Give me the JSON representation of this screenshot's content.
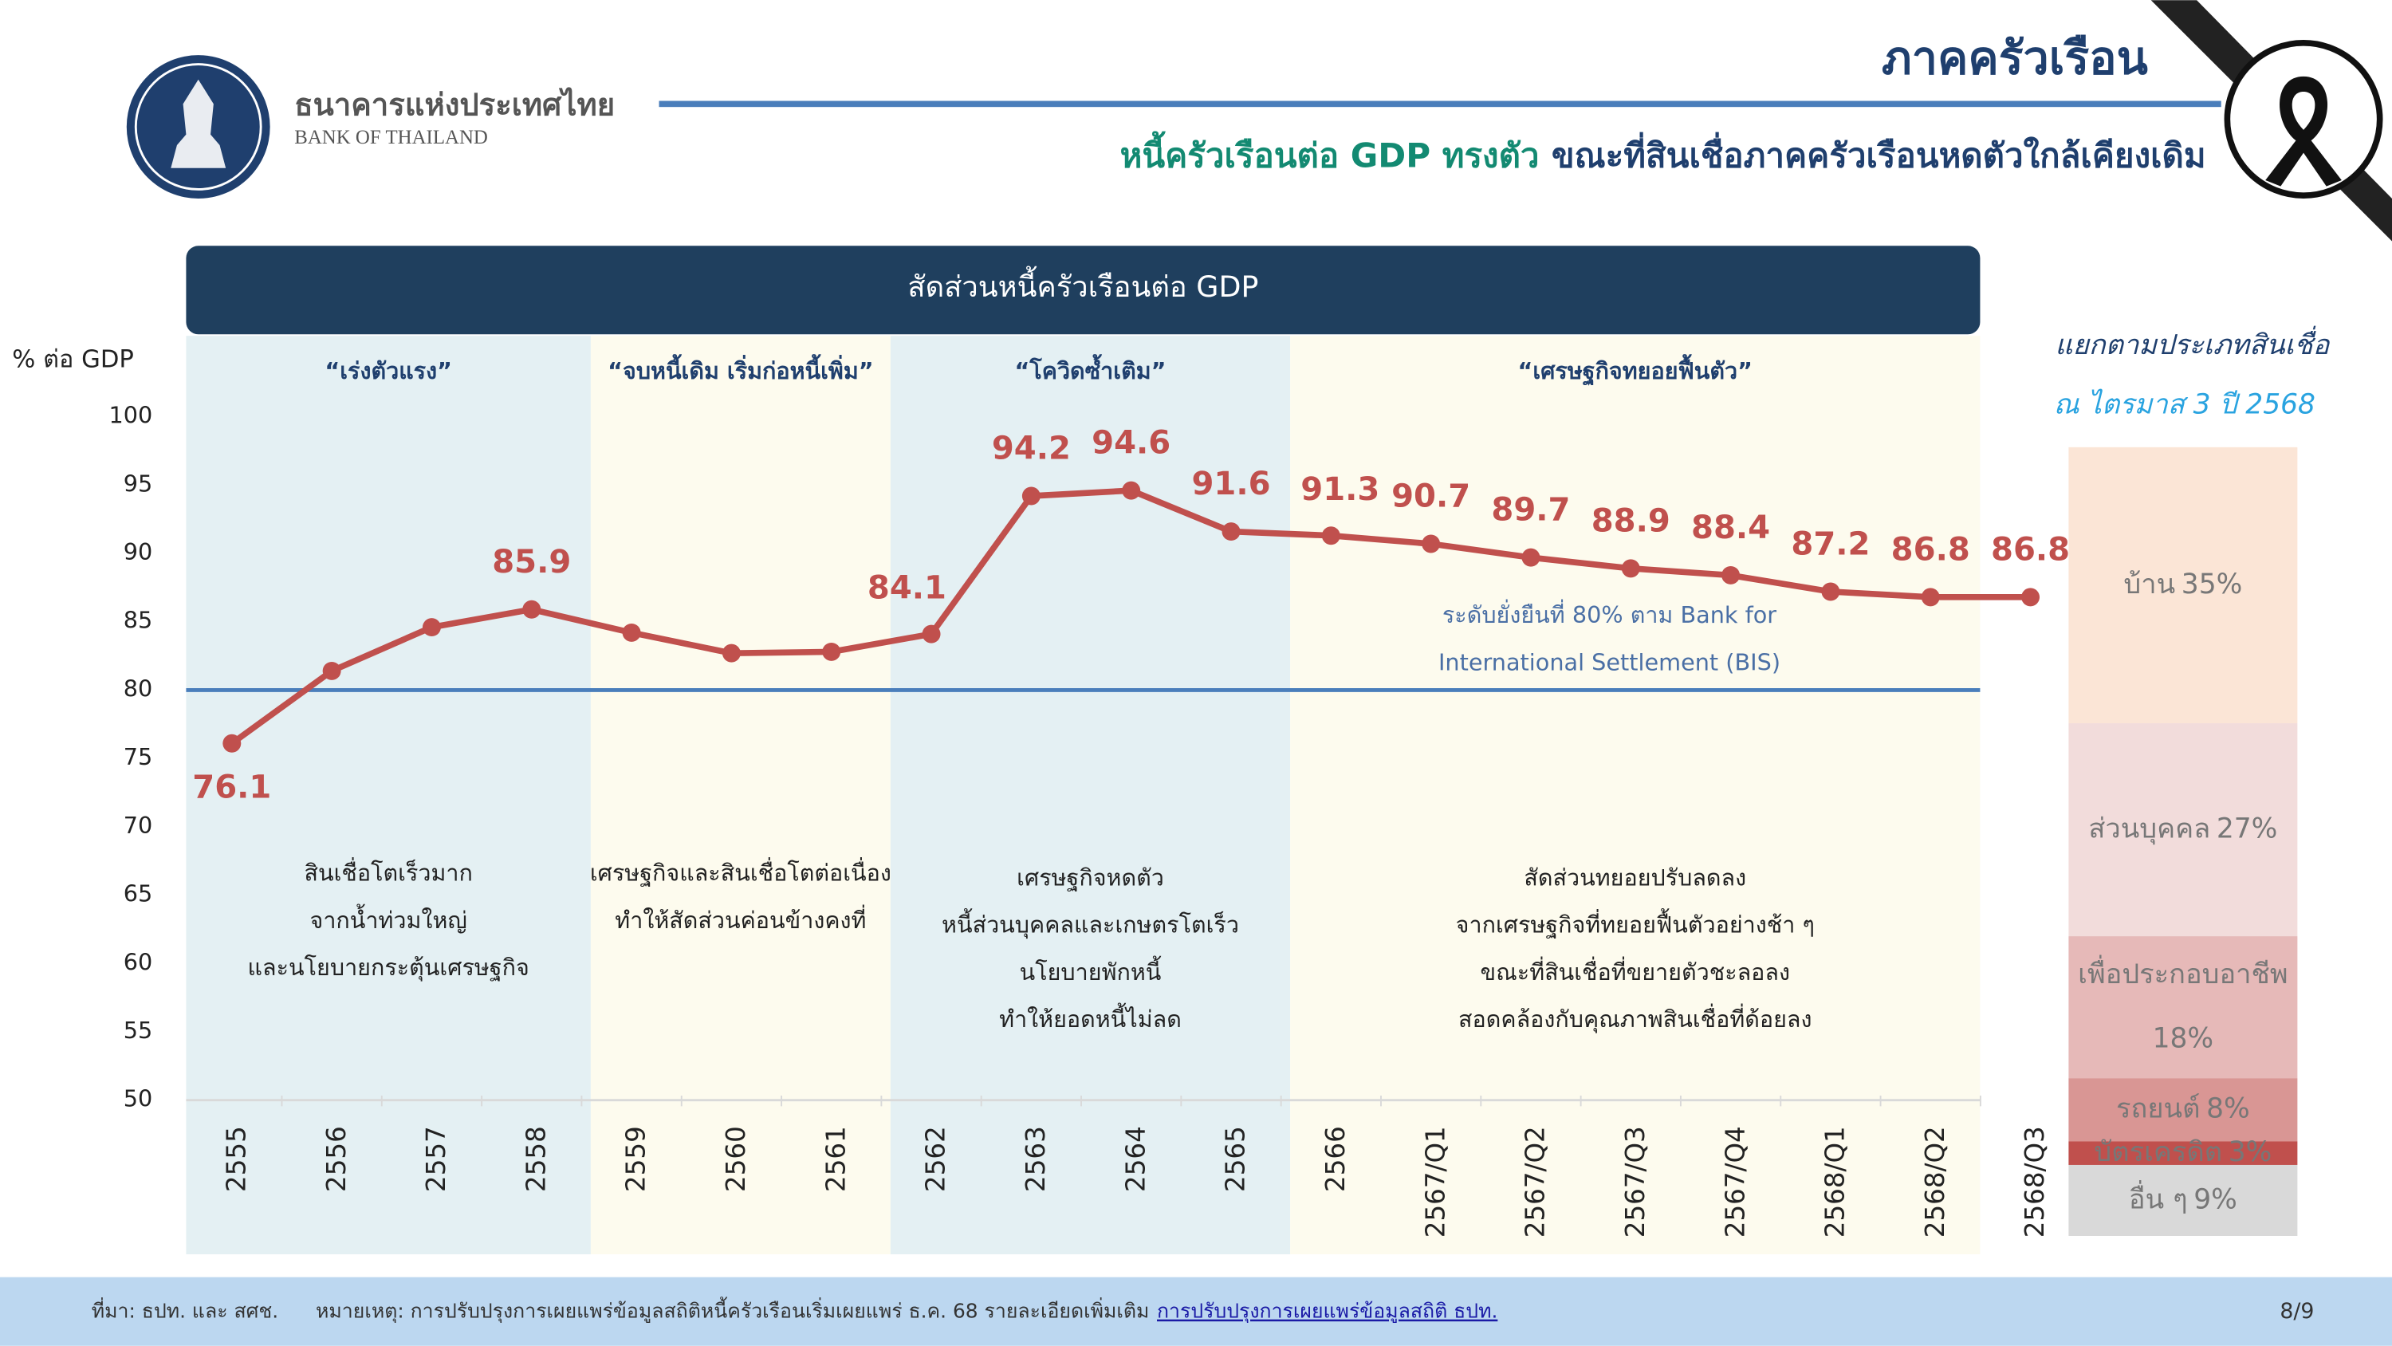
{
  "header": {
    "org_th": "ธนาคารแห่งประเทศไทย",
    "org_en": "BANK OF THAILAND",
    "section": "ภาคครัวเรือน",
    "headline_green": "หนี้ครัวเรือนต่อ GDP ทรงตัว",
    "headline_navy": "ขณะที่สินเชื่อภาคครัวเรือนหดตัวใกล้เคียงเดิม"
  },
  "chart_data": [
    {
      "type": "line",
      "title": "สัดส่วนหนี้ครัวเรือนต่อ GDP",
      "y_label": "% ต่อ GDP",
      "categories": [
        "2555",
        "2556",
        "2557",
        "2558",
        "2559",
        "2560",
        "2561",
        "2562",
        "2563",
        "2564",
        "2565",
        "2566",
        "2567/Q1",
        "2567/Q2",
        "2567/Q3",
        "2567/Q4",
        "2568/Q1",
        "2568/Q2",
        "2568/Q3"
      ],
      "series": [
        {
          "name": "สัดส่วนหนี้ครัวเรือนต่อ GDP",
          "color": "#c0504d",
          "values": [
            76.1,
            81.4,
            84.6,
            85.9,
            84.2,
            82.7,
            82.8,
            84.1,
            94.2,
            94.6,
            91.6,
            91.3,
            90.7,
            89.7,
            88.9,
            88.4,
            87.2,
            86.8,
            86.8
          ],
          "value_labels": [
            "76.1",
            null,
            null,
            "85.9",
            null,
            null,
            null,
            "84.1",
            "94.2",
            "94.6",
            "91.6",
            "91.3",
            "90.7",
            "89.7",
            "88.9",
            "88.4",
            "87.2",
            "86.8",
            "86.8"
          ]
        }
      ],
      "ylim": [
        50,
        100
      ],
      "yticks": [
        50,
        55,
        60,
        65,
        70,
        75,
        80,
        85,
        90,
        95,
        100
      ],
      "reference_line": {
        "value": 80,
        "color": "#4a7ebb",
        "label": [
          "ระดับยั่งยืนที่ 80% ตาม Bank for",
          "International Settlement (BIS)"
        ]
      },
      "phases": [
        {
          "title": "“เร่งตัวแรง”",
          "start": "2555",
          "end": "2558",
          "color": "#e4f0f3",
          "notes": [
            "สินเชื่อโตเร็วมาก",
            "จากน้ำท่วมใหญ่",
            "และนโยบายกระตุ้นเศรษฐกิจ"
          ]
        },
        {
          "title": "“จบหนี้เดิม เริ่มก่อหนี้เพิ่ม”",
          "start": "2559",
          "end": "2561",
          "color": "#fdfbee",
          "notes": [
            "เศรษฐกิจและสินเชื่อโตต่อเนื่อง",
            "ทำให้สัดส่วนค่อนข้างคงที่"
          ]
        },
        {
          "title": "“โควิดซ้ำเติม”",
          "start": "2562",
          "end": "2565",
          "color": "#e4f0f3",
          "notes": [
            "เศรษฐกิจหดตัว",
            "หนี้ส่วนบุคคลและเกษตรโตเร็ว",
            "นโยบายพักหนี้",
            "ทำให้ยอดหนี้ไม่ลด"
          ]
        },
        {
          "title": "“เศรษฐกิจทยอยฟื้นตัว”",
          "start": "2566",
          "end": "2568/Q3",
          "color": "#fdfbee",
          "notes": [
            "สัดส่วนทยอยปรับลดลง",
            "จากเศรษฐกิจที่ทยอยฟื้นตัวอย่างช้า ๆ",
            "ขณะที่สินเชื่อที่ขยายตัวชะลอลง",
            "สอดคล้องกับคุณภาพสินเชื่อที่ด้อยลง"
          ]
        }
      ]
    },
    {
      "type": "stacked_bar",
      "title": "แยกตามประเภทสินเชื่อ",
      "subtitle": "ณ ไตรมาส 3 ปี 2568",
      "series": [
        {
          "name": "บ้าน",
          "color": "#fbe5d6",
          "values": [
            35
          ],
          "value_labels": [
            "35%"
          ]
        },
        {
          "name": "ส่วนบุคคล",
          "color": "#f2dcdb",
          "values": [
            27
          ],
          "value_labels": [
            "27%"
          ]
        },
        {
          "name": "เพื่อประกอบอาชีพ",
          "color": "#e6b9b8",
          "values": [
            18
          ],
          "value_labels": [
            "18%"
          ]
        },
        {
          "name": "รถยนต์",
          "color": "#d99694",
          "values": [
            8
          ],
          "value_labels": [
            "8%"
          ]
        },
        {
          "name": "บัตรเครดิต",
          "color": "#c0504d",
          "values": [
            3
          ],
          "value_labels": [
            "3%"
          ]
        },
        {
          "name": "อื่น ๆ",
          "color": "#d9d9d9",
          "values": [
            9
          ],
          "value_labels": [
            "9%"
          ]
        }
      ]
    }
  ],
  "footer": {
    "source": "ที่มา: ธปท. และ สศช.",
    "note": "หมายเหตุ: การปรับปรุงการเผยแพร่ข้อมูลสถิติหนี้ครัวเรือนเริ่มเผยแพร่ ธ.ค. 68 รายละเอียดเพิ่มเติม",
    "link": "การปรับปรุงการเผยแพร่ข้อมูลสถิติ ธปท.",
    "page": "8/9"
  }
}
